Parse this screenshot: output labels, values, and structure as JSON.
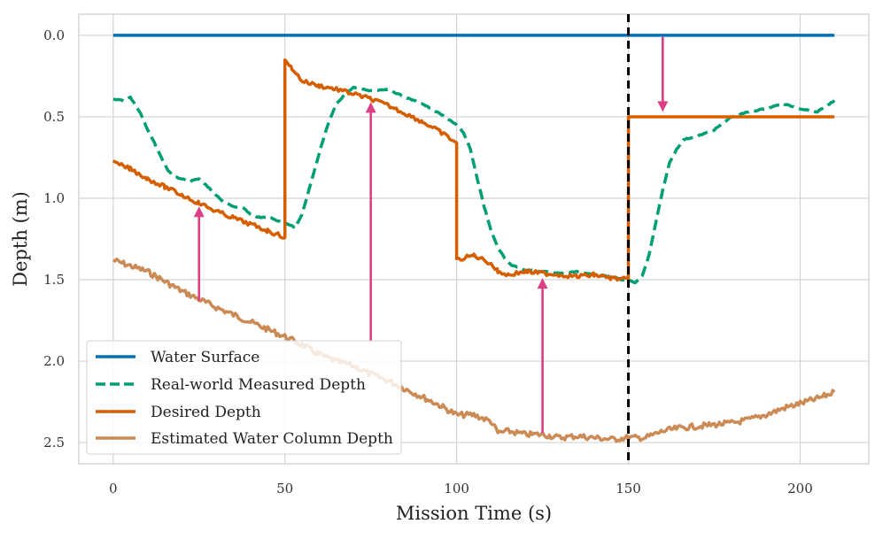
{
  "chart_data": {
    "type": "line",
    "xlabel": "Mission Time (s)",
    "ylabel": "Depth (m)",
    "xlim": [
      -10,
      220
    ],
    "ylim": [
      2.63,
      -0.13
    ],
    "y_inverted": true,
    "grid": true,
    "xticks": [
      0,
      50,
      100,
      150,
      200
    ],
    "yticks": [
      0.0,
      0.5,
      1.0,
      1.5,
      2.0,
      2.5
    ],
    "xtick_labels": [
      "0",
      "50",
      "100",
      "150",
      "200"
    ],
    "ytick_labels": [
      "0.0",
      "0.5",
      "1.0",
      "1.5",
      "2.0",
      "2.5"
    ],
    "legend_position": "lower-left",
    "vline": {
      "x": 150,
      "style": "dashed",
      "color": "#000000"
    },
    "series": [
      {
        "name": "Water Surface",
        "color": "#0072b2",
        "style": "solid",
        "x": [
          0,
          210
        ],
        "y": [
          0.0,
          0.0
        ]
      },
      {
        "name": "Real-world Measured Depth",
        "color": "#009e73",
        "style": "dashed",
        "x": [
          0,
          3,
          5,
          8,
          10,
          12,
          14,
          16,
          18,
          20,
          22,
          25,
          28,
          30,
          32,
          35,
          38,
          40,
          43,
          45,
          48,
          50,
          53,
          55,
          57,
          59,
          61,
          63,
          65,
          68,
          70,
          75,
          80,
          85,
          90,
          95,
          98,
          100,
          102,
          104,
          106,
          108,
          110,
          112,
          114,
          116,
          120,
          125,
          130,
          135,
          140,
          145,
          148,
          150,
          152,
          154,
          156,
          158,
          160,
          162,
          164,
          166,
          170,
          175,
          180,
          185,
          190,
          195,
          200,
          205,
          210
        ],
        "y": [
          0.39,
          0.4,
          0.38,
          0.48,
          0.58,
          0.66,
          0.75,
          0.83,
          0.87,
          0.88,
          0.9,
          0.88,
          0.94,
          0.98,
          1.02,
          1.05,
          1.06,
          1.1,
          1.12,
          1.11,
          1.14,
          1.15,
          1.18,
          1.1,
          0.95,
          0.8,
          0.65,
          0.52,
          0.42,
          0.35,
          0.32,
          0.34,
          0.33,
          0.38,
          0.42,
          0.48,
          0.52,
          0.55,
          0.6,
          0.7,
          0.88,
          1.05,
          1.2,
          1.3,
          1.37,
          1.41,
          1.44,
          1.45,
          1.46,
          1.45,
          1.47,
          1.48,
          1.5,
          1.5,
          1.52,
          1.48,
          1.35,
          1.15,
          0.95,
          0.78,
          0.7,
          0.64,
          0.62,
          0.58,
          0.5,
          0.47,
          0.45,
          0.42,
          0.45,
          0.47,
          0.4
        ]
      },
      {
        "name": "Desired Depth",
        "color": "#d55e00",
        "style": "solid",
        "x": [
          0,
          5,
          10,
          15,
          20,
          25,
          30,
          35,
          40,
          45,
          50,
          50.01,
          52,
          55,
          60,
          65,
          70,
          75,
          80,
          85,
          90,
          95,
          100,
          100.01,
          105,
          110,
          112,
          115,
          120,
          125,
          130,
          135,
          140,
          145,
          150,
          150.01,
          210
        ],
        "y": [
          0.78,
          0.82,
          0.88,
          0.93,
          0.98,
          1.03,
          1.08,
          1.12,
          1.16,
          1.2,
          1.24,
          0.16,
          0.2,
          0.28,
          0.31,
          0.33,
          0.36,
          0.39,
          0.43,
          0.48,
          0.53,
          0.59,
          0.66,
          1.38,
          1.35,
          1.4,
          1.45,
          1.47,
          1.45,
          1.46,
          1.47,
          1.48,
          1.47,
          1.49,
          1.5,
          0.5,
          0.5
        ]
      },
      {
        "name": "Estimated Water Column Depth",
        "color": "#cc8a55",
        "style": "solid",
        "x": [
          0,
          10,
          20,
          25,
          30,
          40,
          50,
          55,
          60,
          65,
          70,
          75,
          80,
          85,
          90,
          95,
          100,
          105,
          110,
          112,
          115,
          120,
          125,
          130,
          135,
          140,
          145,
          150,
          155,
          160,
          165,
          170,
          175,
          180,
          185,
          190,
          195,
          200,
          205,
          210
        ],
        "y": [
          1.38,
          1.45,
          1.57,
          1.62,
          1.67,
          1.76,
          1.85,
          1.9,
          1.96,
          2.0,
          2.03,
          2.08,
          2.12,
          2.17,
          2.22,
          2.27,
          2.33,
          2.33,
          2.37,
          2.44,
          2.43,
          2.45,
          2.45,
          2.47,
          2.46,
          2.47,
          2.48,
          2.47,
          2.47,
          2.43,
          2.41,
          2.4,
          2.39,
          2.38,
          2.36,
          2.33,
          2.29,
          2.26,
          2.23,
          2.19
        ]
      }
    ],
    "annotations": [
      {
        "type": "arrow",
        "x": 25,
        "y_from": 1.63,
        "y_to": 1.05,
        "color": "#dc3f86"
      },
      {
        "type": "arrow",
        "x": 75,
        "y_from": 1.88,
        "y_to": 0.41,
        "color": "#dc3f86"
      },
      {
        "type": "arrow",
        "x": 125,
        "y_from": 2.44,
        "y_to": 1.49,
        "color": "#dc3f86"
      },
      {
        "type": "arrow",
        "x": 160,
        "y_from": 0.01,
        "y_to": 0.47,
        "color": "#dc3f86"
      }
    ]
  }
}
